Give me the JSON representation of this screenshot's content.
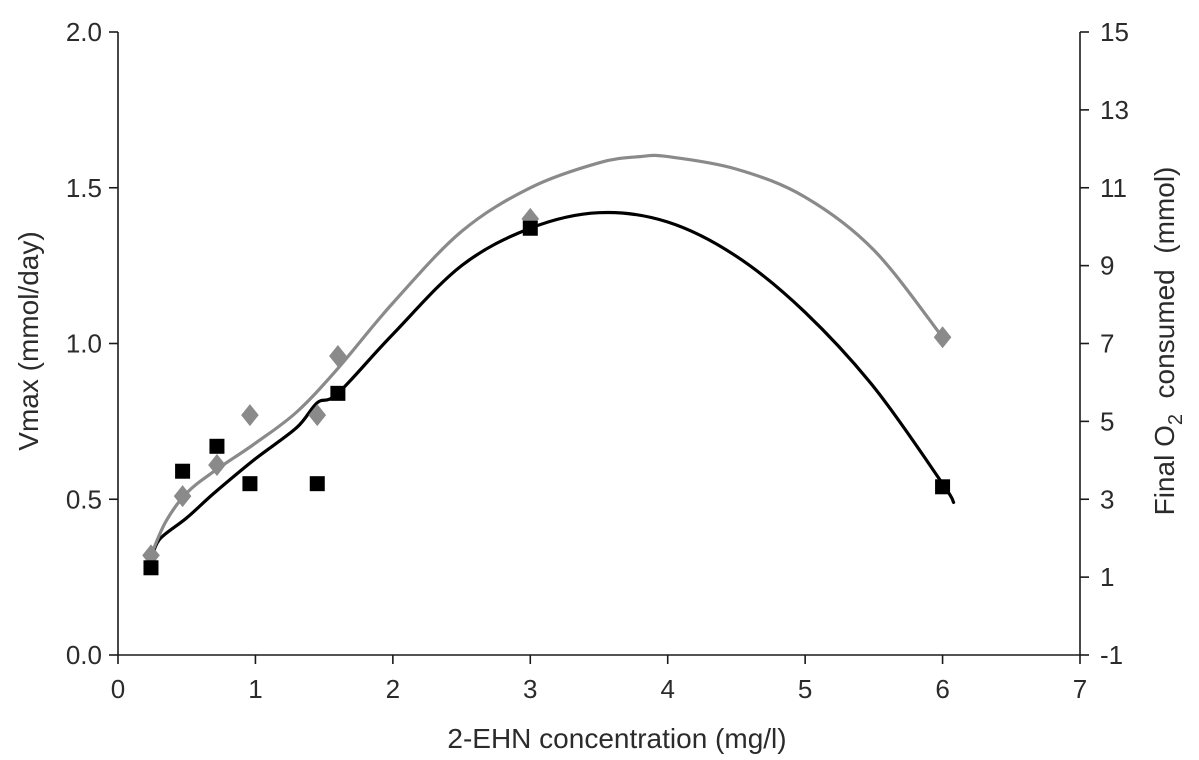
{
  "chart_data": {
    "type": "scatter",
    "x_axis": {
      "label": "2-EHN concentration (mg/l)",
      "range": [
        0,
        7
      ],
      "ticks": [
        "0",
        "1",
        "2",
        "3",
        "4",
        "5",
        "6",
        "7"
      ]
    },
    "y_left_axis": {
      "label": "Vmax (mmol/day)",
      "range": [
        0,
        2
      ],
      "ticks": [
        "0.0",
        "0.5",
        "1.0",
        "1.5",
        "2.0"
      ]
    },
    "y_right_axis": {
      "label_prefix": "Final O",
      "label_subscript": "2",
      "label_suffix": "  consumed  (mmol)",
      "range": [
        -1,
        15
      ],
      "ticks": [
        "-1",
        "1",
        "3",
        "5",
        "7",
        "9",
        "11",
        "13",
        "15"
      ]
    },
    "grid": false,
    "series": [
      {
        "marker": "square",
        "color": "#000000",
        "axis": "left",
        "points": [
          [
            0.24,
            0.28
          ],
          [
            0.47,
            0.59
          ],
          [
            0.72,
            0.67
          ],
          [
            0.96,
            0.55
          ],
          [
            1.45,
            0.55
          ],
          [
            1.6,
            0.84
          ],
          [
            3.0,
            1.37
          ],
          [
            6.0,
            0.54
          ]
        ],
        "trend": [
          [
            0.24,
            0.3
          ],
          [
            0.3,
            0.37
          ],
          [
            0.5,
            0.44
          ],
          [
            0.7,
            0.52
          ],
          [
            1.0,
            0.63
          ],
          [
            1.3,
            0.73
          ],
          [
            1.45,
            0.81
          ],
          [
            1.6,
            0.84
          ],
          [
            2.0,
            1.03
          ],
          [
            2.5,
            1.25
          ],
          [
            3.0,
            1.37
          ],
          [
            3.5,
            1.42
          ],
          [
            4.0,
            1.39
          ],
          [
            4.5,
            1.28
          ],
          [
            5.0,
            1.1
          ],
          [
            5.5,
            0.86
          ],
          [
            6.0,
            0.55
          ],
          [
            6.08,
            0.49
          ]
        ]
      },
      {
        "marker": "diamond",
        "color": "#8a8a8a",
        "axis": "left",
        "points": [
          [
            0.24,
            0.32
          ],
          [
            0.47,
            0.51
          ],
          [
            0.72,
            0.61
          ],
          [
            0.96,
            0.77
          ],
          [
            1.45,
            0.77
          ],
          [
            1.6,
            0.96
          ],
          [
            3.0,
            1.4
          ],
          [
            6.0,
            1.02
          ]
        ],
        "trend": [
          [
            0.24,
            0.32
          ],
          [
            0.35,
            0.43
          ],
          [
            0.5,
            0.52
          ],
          [
            0.7,
            0.59
          ],
          [
            1.0,
            0.68
          ],
          [
            1.3,
            0.78
          ],
          [
            1.6,
            0.92
          ],
          [
            2.0,
            1.13
          ],
          [
            2.5,
            1.36
          ],
          [
            3.0,
            1.5
          ],
          [
            3.5,
            1.58
          ],
          [
            3.8,
            1.6
          ],
          [
            4.0,
            1.6
          ],
          [
            4.5,
            1.56
          ],
          [
            5.0,
            1.47
          ],
          [
            5.5,
            1.3
          ],
          [
            6.0,
            1.02
          ]
        ]
      }
    ]
  }
}
